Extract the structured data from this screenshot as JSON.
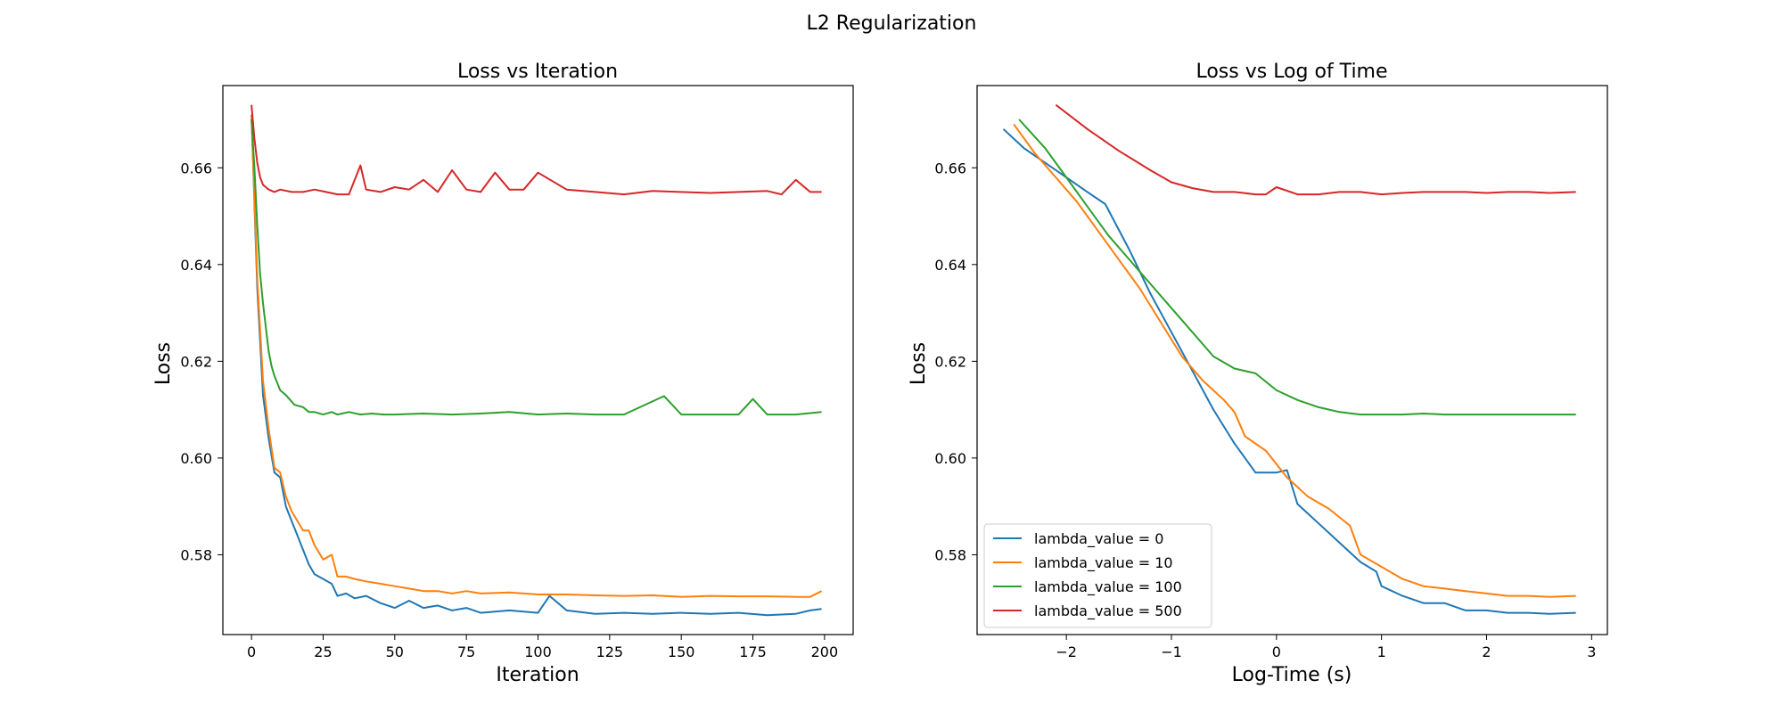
{
  "chart_data": {
    "title": "L2 Regularization",
    "colors": {
      "lambda_0": "#1f77b4",
      "lambda_10": "#ff7f0e",
      "lambda_100": "#2ca02c",
      "lambda_500": "#d62728"
    },
    "legend": {
      "placement": "lower-left of right panel",
      "entries": [
        "lambda_value = 0",
        "lambda_value = 10",
        "lambda_value = 100",
        "lambda_value = 500"
      ]
    },
    "panels": [
      {
        "type": "line",
        "title": "Loss vs Iteration",
        "xlabel": "Iteration",
        "ylabel": "Loss",
        "xlim": [
          -10,
          210
        ],
        "ylim": [
          0.5635,
          0.677
        ],
        "xticks": [
          0,
          25,
          50,
          75,
          100,
          125,
          150,
          175,
          200
        ],
        "xtick_labels": [
          "0",
          "25",
          "50",
          "75",
          "100",
          "125",
          "150",
          "175",
          "200"
        ],
        "yticks": [
          0.58,
          0.6,
          0.62,
          0.64,
          0.66
        ],
        "ytick_labels": [
          "0.58",
          "0.60",
          "0.62",
          "0.64",
          "0.66"
        ],
        "grid": false,
        "series": [
          {
            "name": "lambda_value = 0",
            "color": "#1f77b4",
            "x": [
              0,
              2,
              4,
              6,
              8,
              10,
              12,
              14,
              16,
              18,
              20,
              22,
              25,
              28,
              30,
              33,
              36,
              40,
              45,
              50,
              55,
              60,
              65,
              70,
              75,
              80,
              90,
              100,
              104,
              110,
              120,
              130,
              140,
              150,
              160,
              170,
              180,
              190,
              195,
              199
            ],
            "y": [
              0.671,
              0.635,
              0.613,
              0.604,
              0.597,
              0.596,
              0.59,
              0.587,
              0.584,
              0.581,
              0.578,
              0.576,
              0.575,
              0.574,
              0.5715,
              0.572,
              0.571,
              0.5715,
              0.57,
              0.569,
              0.5705,
              0.569,
              0.5695,
              0.5685,
              0.569,
              0.568,
              0.5685,
              0.568,
              0.5715,
              0.5685,
              0.5678,
              0.568,
              0.5678,
              0.568,
              0.5678,
              0.568,
              0.5675,
              0.5678,
              0.5685,
              0.5688
            ]
          },
          {
            "name": "lambda_value = 10",
            "color": "#ff7f0e",
            "x": [
              0,
              2,
              4,
              6,
              8,
              10,
              12,
              14,
              16,
              18,
              20,
              22,
              25,
              28,
              30,
              33,
              36,
              40,
              45,
              50,
              55,
              60,
              65,
              70,
              75,
              80,
              90,
              100,
              110,
              120,
              130,
              140,
              150,
              160,
              170,
              180,
              190,
              195,
              199
            ],
            "y": [
              0.671,
              0.637,
              0.616,
              0.606,
              0.598,
              0.597,
              0.592,
              0.589,
              0.587,
              0.585,
              0.585,
              0.582,
              0.579,
              0.58,
              0.5755,
              0.5755,
              0.575,
              0.5745,
              0.574,
              0.5735,
              0.573,
              0.5725,
              0.5725,
              0.572,
              0.5725,
              0.572,
              0.5722,
              0.5718,
              0.5718,
              0.5716,
              0.5715,
              0.5716,
              0.5713,
              0.5715,
              0.5714,
              0.5714,
              0.5713,
              0.5713,
              0.5725
            ]
          },
          {
            "name": "lambda_value = 100",
            "color": "#2ca02c",
            "x": [
              0,
              1,
              2,
              3,
              4,
              5,
              6,
              7,
              8,
              10,
              12,
              15,
              18,
              20,
              22,
              25,
              28,
              30,
              34,
              38,
              42,
              46,
              50,
              60,
              70,
              80,
              90,
              100,
              110,
              120,
              130,
              144,
              150,
              160,
              170,
              175,
              180,
              190,
              199
            ],
            "y": [
              0.67,
              0.66,
              0.648,
              0.638,
              0.632,
              0.627,
              0.622,
              0.619,
              0.617,
              0.614,
              0.613,
              0.611,
              0.6105,
              0.6095,
              0.6095,
              0.609,
              0.6095,
              0.609,
              0.6095,
              0.609,
              0.6092,
              0.609,
              0.609,
              0.6092,
              0.609,
              0.6092,
              0.6095,
              0.609,
              0.6092,
              0.609,
              0.609,
              0.6128,
              0.609,
              0.609,
              0.609,
              0.6122,
              0.609,
              0.609,
              0.6095
            ]
          },
          {
            "name": "lambda_value = 500",
            "color": "#d62728",
            "x": [
              0,
              1,
              2,
              3,
              4,
              5,
              6,
              8,
              10,
              14,
              18,
              22,
              26,
              30,
              34,
              38,
              40,
              45,
              50,
              55,
              60,
              65,
              70,
              75,
              80,
              85,
              90,
              95,
              100,
              110,
              120,
              130,
              140,
              150,
              160,
              170,
              180,
              185,
              190,
              195,
              199
            ],
            "y": [
              0.673,
              0.666,
              0.661,
              0.658,
              0.6565,
              0.656,
              0.6555,
              0.655,
              0.6555,
              0.655,
              0.655,
              0.6555,
              0.655,
              0.6545,
              0.6545,
              0.6605,
              0.6555,
              0.655,
              0.656,
              0.6555,
              0.6575,
              0.655,
              0.6595,
              0.6555,
              0.655,
              0.659,
              0.6555,
              0.6555,
              0.659,
              0.6555,
              0.655,
              0.6545,
              0.6552,
              0.655,
              0.6548,
              0.655,
              0.6552,
              0.6545,
              0.6575,
              0.655,
              0.655
            ]
          }
        ]
      },
      {
        "type": "line",
        "title": "Loss vs Log of Time",
        "xlabel": "Log-Time (s)",
        "ylabel": "Loss",
        "xlim": [
          -2.85,
          3.15
        ],
        "ylim": [
          0.5635,
          0.677
        ],
        "xticks": [
          -2,
          -1,
          0,
          1,
          2,
          3
        ],
        "xtick_labels": [
          "−2",
          "−1",
          "0",
          "1",
          "2",
          "3"
        ],
        "yticks": [
          0.58,
          0.6,
          0.62,
          0.64,
          0.66
        ],
        "ytick_labels": [
          "0.58",
          "0.60",
          "0.62",
          "0.64",
          "0.66"
        ],
        "grid": false,
        "series": [
          {
            "name": "lambda_value = 0",
            "color": "#1f77b4",
            "x": [
              -2.6,
              -2.4,
              -2.2,
              -2.0,
              -1.8,
              -1.63,
              -1.4,
              -1.2,
              -1.0,
              -0.8,
              -0.6,
              -0.4,
              -0.2,
              0.0,
              0.1,
              0.2,
              0.4,
              0.6,
              0.8,
              0.95,
              1.0,
              1.2,
              1.4,
              1.6,
              1.8,
              2.0,
              2.2,
              2.4,
              2.6,
              2.85
            ],
            "y": [
              0.668,
              0.664,
              0.661,
              0.658,
              0.655,
              0.6525,
              0.643,
              0.634,
              0.626,
              0.618,
              0.61,
              0.603,
              0.597,
              0.597,
              0.5975,
              0.5905,
              0.5865,
              0.5825,
              0.5785,
              0.5765,
              0.5735,
              0.5715,
              0.57,
              0.57,
              0.5685,
              0.5685,
              0.568,
              0.568,
              0.5678,
              0.568
            ]
          },
          {
            "name": "lambda_value = 10",
            "color": "#ff7f0e",
            "x": [
              -2.5,
              -2.3,
              -2.1,
              -1.9,
              -1.7,
              -1.5,
              -1.3,
              -1.1,
              -0.9,
              -0.7,
              -0.5,
              -0.4,
              -0.3,
              -0.1,
              0.1,
              0.3,
              0.5,
              0.7,
              0.8,
              1.0,
              1.2,
              1.4,
              1.6,
              1.8,
              2.0,
              2.2,
              2.4,
              2.6,
              2.85
            ],
            "y": [
              0.669,
              0.663,
              0.658,
              0.653,
              0.647,
              0.641,
              0.635,
              0.628,
              0.621,
              0.616,
              0.612,
              0.6095,
              0.6045,
              0.6015,
              0.596,
              0.592,
              0.5895,
              0.586,
              0.58,
              0.5775,
              0.575,
              0.5735,
              0.573,
              0.5725,
              0.572,
              0.5715,
              0.5715,
              0.5713,
              0.5715
            ]
          },
          {
            "name": "lambda_value = 100",
            "color": "#2ca02c",
            "x": [
              -2.45,
              -2.2,
              -2.0,
              -1.8,
              -1.6,
              -1.4,
              -1.2,
              -1.0,
              -0.8,
              -0.6,
              -0.4,
              -0.2,
              0.0,
              0.2,
              0.4,
              0.6,
              0.8,
              1.0,
              1.2,
              1.4,
              1.6,
              1.8,
              2.0,
              2.2,
              2.4,
              2.6,
              2.85
            ],
            "y": [
              0.67,
              0.664,
              0.658,
              0.652,
              0.646,
              0.641,
              0.636,
              0.631,
              0.626,
              0.621,
              0.6185,
              0.6175,
              0.614,
              0.612,
              0.6105,
              0.6095,
              0.609,
              0.609,
              0.609,
              0.6092,
              0.609,
              0.609,
              0.609,
              0.609,
              0.609,
              0.609,
              0.609
            ]
          },
          {
            "name": "lambda_value = 500",
            "color": "#d62728",
            "x": [
              -2.1,
              -1.8,
              -1.5,
              -1.2,
              -1.0,
              -0.8,
              -0.6,
              -0.4,
              -0.2,
              -0.1,
              0.0,
              0.2,
              0.4,
              0.6,
              0.8,
              1.0,
              1.2,
              1.4,
              1.6,
              1.8,
              2.0,
              2.2,
              2.4,
              2.6,
              2.85
            ],
            "y": [
              0.673,
              0.668,
              0.6635,
              0.6595,
              0.657,
              0.6558,
              0.655,
              0.655,
              0.6545,
              0.6545,
              0.656,
              0.6545,
              0.6545,
              0.655,
              0.655,
              0.6545,
              0.6548,
              0.655,
              0.655,
              0.655,
              0.6548,
              0.655,
              0.655,
              0.6548,
              0.655
            ]
          }
        ]
      }
    ]
  }
}
